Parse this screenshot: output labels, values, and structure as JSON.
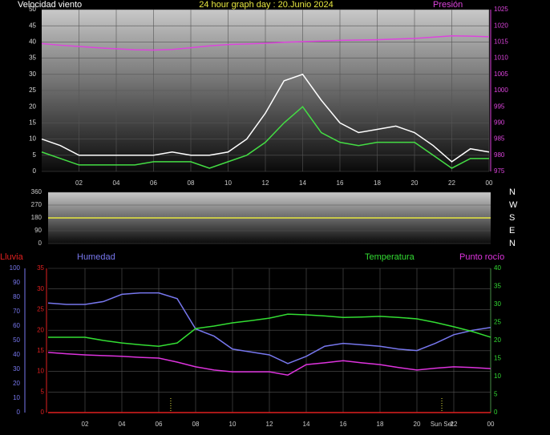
{
  "chart_data": [
    {
      "type": "line",
      "title": "24 hour graph day : 20.Junio 2024",
      "x": [
        0,
        1,
        2,
        3,
        4,
        5,
        6,
        7,
        8,
        9,
        10,
        11,
        12,
        13,
        14,
        15,
        16,
        17,
        18,
        19,
        20,
        21,
        22,
        23,
        24
      ],
      "xlim": [
        0,
        24
      ],
      "xticks": [
        {
          "value": 2,
          "label": "02"
        },
        {
          "value": 4,
          "label": "04"
        },
        {
          "value": 6,
          "label": "06"
        },
        {
          "value": 8,
          "label": "08"
        },
        10,
        12,
        14,
        16,
        18,
        20,
        22,
        {
          "value": 24,
          "label": "00"
        }
      ],
      "ylim": [
        0,
        50
      ],
      "yticks": [
        0,
        5,
        10,
        15,
        20,
        25,
        30,
        35,
        40,
        45,
        50
      ],
      "y2lim": [
        975,
        1025
      ],
      "y2ticks": [
        975,
        980,
        985,
        990,
        995,
        1000,
        1005,
        1010,
        1015,
        1020,
        1025
      ],
      "grid": true,
      "series": [
        {
          "color": "#ffffff",
          "values": [
            10,
            8,
            5,
            5,
            5,
            5,
            5,
            6,
            5,
            5,
            6,
            10,
            18,
            28,
            30,
            22,
            15,
            12,
            13,
            14,
            12,
            8,
            3,
            7,
            6
          ]
        },
        {
          "name": "Velocidad viento",
          "color": "#44dd44",
          "values": [
            6,
            4,
            2,
            2,
            2,
            2,
            3,
            3,
            3,
            1,
            3,
            5,
            9,
            15,
            20,
            12,
            9,
            8,
            9,
            9,
            9,
            5,
            1,
            4,
            4
          ]
        },
        {
          "name": "Presión",
          "color": "#dd44dd",
          "axis": "y2",
          "values": [
            1014.5,
            1014,
            1013.6,
            1013.2,
            1012.9,
            1012.6,
            1012.5,
            1012.7,
            1013.2,
            1013.8,
            1014.2,
            1014.4,
            1014.6,
            1014.9,
            1015.1,
            1015.3,
            1015.5,
            1015.6,
            1015.7,
            1015.9,
            1016.1,
            1016.5,
            1016.9,
            1016.8,
            1016.6
          ]
        }
      ]
    },
    {
      "type": "line",
      "x": [
        0,
        1,
        2,
        3,
        4,
        5,
        6,
        7,
        8,
        9,
        10,
        11,
        12,
        13,
        14,
        15,
        16,
        17,
        18,
        19,
        20,
        21,
        22,
        23,
        24
      ],
      "xlim": [
        0,
        24
      ],
      "ylim": [
        0,
        360
      ],
      "yticks": [
        0,
        90,
        180,
        270,
        360
      ],
      "y2lim": [
        0,
        360
      ],
      "y2ticks": [
        {
          "value": 360,
          "label": "N"
        },
        {
          "value": 270,
          "label": "W"
        },
        {
          "value": 180,
          "label": "S"
        },
        {
          "value": 90,
          "label": "E"
        },
        {
          "value": 0,
          "label": "N"
        }
      ],
      "grid": true,
      "series": [
        {
          "color": "#e8e840",
          "values": [
            180,
            180,
            180,
            180,
            180,
            180,
            180,
            180,
            180,
            180,
            180,
            180,
            180,
            180,
            180,
            180,
            180,
            180,
            180,
            180,
            180,
            180,
            180,
            180,
            180
          ]
        }
      ]
    },
    {
      "type": "line",
      "x": [
        0,
        1,
        2,
        3,
        4,
        5,
        6,
        7,
        8,
        9,
        10,
        11,
        12,
        13,
        14,
        15,
        16,
        17,
        18,
        19,
        20,
        21,
        22,
        23,
        24
      ],
      "xlim": [
        0,
        24
      ],
      "xticks": [
        {
          "value": 2,
          "label": "02"
        },
        {
          "value": 4,
          "label": "04"
        },
        {
          "value": 6,
          "label": "06"
        },
        {
          "value": 8,
          "label": "08"
        },
        10,
        12,
        14,
        16,
        18,
        20,
        22,
        {
          "value": 24,
          "label": "00"
        }
      ],
      "ylim": [
        0,
        35
      ],
      "yticks": [
        0,
        5,
        10,
        15,
        20,
        25,
        30,
        35
      ],
      "y2lim": [
        0,
        40
      ],
      "y2ticks": [
        0,
        5,
        10,
        15,
        20,
        25,
        30,
        35,
        40
      ],
      "y3lim": [
        0,
        100
      ],
      "y3ticks": [
        0,
        10,
        20,
        30,
        40,
        50,
        60,
        70,
        80,
        90,
        100
      ],
      "grid": true,
      "events": [
        {
          "x": 6.65
        },
        {
          "x": 21.35,
          "label": "Sun Set"
        }
      ],
      "series": [
        {
          "name": "Lluvia",
          "color": "#e02020",
          "values": [
            0,
            0,
            0,
            0,
            0,
            0,
            0,
            0,
            0,
            0,
            0,
            0,
            0,
            0,
            0,
            0,
            0,
            0,
            0,
            0,
            0,
            0,
            0,
            0,
            0
          ]
        },
        {
          "name": "Humedad",
          "color": "#7777ee",
          "axis": "y3",
          "values": [
            76,
            75,
            75,
            77,
            82,
            83,
            83,
            79,
            58,
            53,
            44,
            42,
            40,
            34,
            39,
            46,
            48,
            47,
            46,
            44,
            43,
            48,
            54,
            57,
            59
          ]
        },
        {
          "name": "Temperatura",
          "color": "#33dd33",
          "axis": "y2",
          "values": [
            20.9,
            20.9,
            20.9,
            20,
            19.3,
            18.8,
            18.4,
            19.3,
            23.3,
            24,
            24.9,
            25.5,
            26.2,
            27.3,
            27.1,
            26.8,
            26.4,
            26.5,
            26.7,
            26.4,
            26,
            25,
            23.8,
            22.5,
            20.9
          ]
        },
        {
          "name": "Punto rocío",
          "color": "#dd33dd",
          "axis": "y2",
          "values": [
            16.7,
            16.3,
            16,
            15.8,
            15.6,
            15.3,
            15.1,
            14,
            12.7,
            11.8,
            11.3,
            11.3,
            11.3,
            10.4,
            13.3,
            13.8,
            14.4,
            13.8,
            13.3,
            12.5,
            11.8,
            12.3,
            12.7,
            12.5,
            12.2
          ]
        }
      ]
    }
  ]
}
